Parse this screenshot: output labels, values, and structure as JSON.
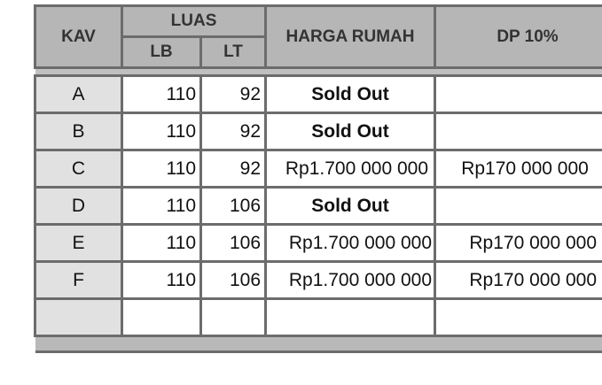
{
  "header": {
    "kav": "KAV",
    "luas": "LUAS",
    "lb": "LB",
    "lt": "LT",
    "harga": "HARGA RUMAH",
    "dp": "DP 10%"
  },
  "rows": [
    {
      "kav": "A",
      "lb": "110",
      "lt": "92",
      "harga": "Sold Out",
      "dp": ""
    },
    {
      "kav": "B",
      "lb": "110",
      "lt": "92",
      "harga": "Sold Out",
      "dp": ""
    },
    {
      "kav": "C",
      "lb": "110",
      "lt": "92",
      "harga": "Rp1.700 000 000",
      "dp": "Rp170 000 000"
    },
    {
      "kav": "D",
      "lb": "110",
      "lt": "106",
      "harga": "Sold Out",
      "dp": ""
    },
    {
      "kav": "E",
      "lb": "110",
      "lt": "106",
      "harga": "Rp1.700 000 000",
      "dp": "Rp170 000 000"
    },
    {
      "kav": "F",
      "lb": "110",
      "lt": "106",
      "harga": "Rp1.700 000 000",
      "dp": "Rp170 000 000"
    },
    {
      "kav": "",
      "lb": "",
      "lt": "",
      "harga": "",
      "dp": ""
    }
  ]
}
